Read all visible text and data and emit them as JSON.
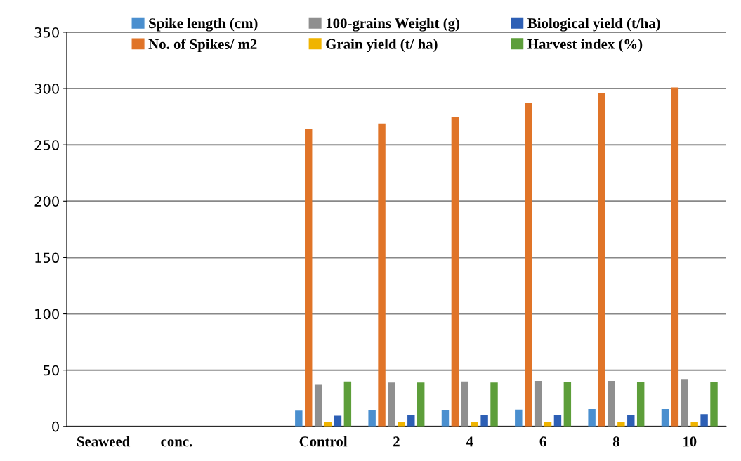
{
  "chart_data": {
    "type": "bar",
    "categories": [
      "Seaweed",
      "conc.",
      null,
      "Control",
      "2",
      "4",
      "6",
      "8",
      "10"
    ],
    "series": [
      {
        "name": "Spike length (cm)",
        "color": "#4a8fcf",
        "values": [
          null,
          null,
          null,
          14,
          14.5,
          14.5,
          15,
          15.5,
          15.5
        ]
      },
      {
        "name": "No. of Spikes/ m2",
        "color": "#e07428",
        "values": [
          null,
          null,
          null,
          264,
          269,
          275,
          287,
          296,
          301
        ]
      },
      {
        "name": "100-grains Weight (g)",
        "color": "#8f8f8f",
        "values": [
          null,
          null,
          null,
          37,
          39,
          40,
          40.5,
          40.5,
          41.5
        ]
      },
      {
        "name": "Grain yield (t/ ha)",
        "color": "#f0b400",
        "values": [
          null,
          null,
          null,
          4,
          4,
          4,
          4,
          4,
          4
        ]
      },
      {
        "name": "Biological yield (t/ha)",
        "color": "#2d5fb5",
        "values": [
          null,
          null,
          null,
          9.5,
          10,
          10,
          10.5,
          10.5,
          11
        ]
      },
      {
        "name": "Harvest index (%)",
        "color": "#5d9e3a",
        "values": [
          null,
          null,
          null,
          40,
          39,
          39,
          39.5,
          39.5,
          39.5
        ]
      }
    ],
    "ylim": [
      0,
      350
    ],
    "yticks": [
      0,
      50,
      100,
      150,
      200,
      250,
      300,
      350
    ],
    "grid": "y",
    "legend": "top"
  }
}
